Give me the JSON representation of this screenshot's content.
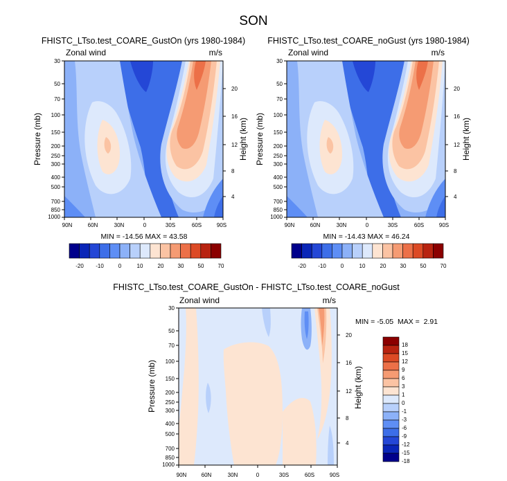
{
  "figure_title": "SON",
  "chart_data": [
    {
      "type": "heatmap",
      "title": "FHISTC_LTso.test_COARE_GustOn (yrs 1980-1984)",
      "left_label": "Zonal wind",
      "right_label": "m/s",
      "xlabel": "",
      "ylabel": "Pressure (mb)",
      "y2label": "Height (km)",
      "x_ticks": [
        "90N",
        "60N",
        "30N",
        "0",
        "30S",
        "60S",
        "90S"
      ],
      "y_ticks": [
        "30",
        "50",
        "70",
        "100",
        "150",
        "200",
        "250",
        "300",
        "400",
        "500",
        "700",
        "850",
        "1000"
      ],
      "y2_ticks": [
        "20",
        "16",
        "12",
        "8",
        "4"
      ],
      "stats": "MIN = -14.56  MAX = 43.58",
      "min": -14.56,
      "max": 43.58,
      "colorbar_labels": [
        "-20",
        "-10",
        "0",
        "10",
        "20",
        "30",
        "50",
        "70"
      ]
    },
    {
      "type": "heatmap",
      "title": "FHISTC_LTso.test_COARE_noGust (yrs 1980-1984)",
      "left_label": "Zonal wind",
      "right_label": "m/s",
      "xlabel": "",
      "ylabel": "Pressure (mb)",
      "y2label": "Height (km)",
      "x_ticks": [
        "90N",
        "60N",
        "30N",
        "0",
        "30S",
        "60S",
        "90S"
      ],
      "y_ticks": [
        "30",
        "50",
        "70",
        "100",
        "150",
        "200",
        "250",
        "300",
        "400",
        "500",
        "700",
        "850",
        "1000"
      ],
      "y2_ticks": [
        "20",
        "16",
        "12",
        "8",
        "4"
      ],
      "stats": "MIN = -14.43  MAX = 46.24",
      "min": -14.43,
      "max": 46.24,
      "colorbar_labels": [
        "-20",
        "-10",
        "0",
        "10",
        "20",
        "30",
        "50",
        "70"
      ]
    },
    {
      "type": "heatmap",
      "title": "FHISTC_LTso.test_COARE_GustOn - FHISTC_LTso.test_COARE_noGust",
      "left_label": "Zonal wind",
      "right_label": "m/s",
      "xlabel": "",
      "ylabel": "Pressure (mb)",
      "y2label": "Height (km)",
      "x_ticks": [
        "90N",
        "60N",
        "30N",
        "0",
        "30S",
        "60S",
        "90S"
      ],
      "y_ticks": [
        "30",
        "50",
        "70",
        "100",
        "150",
        "200",
        "250",
        "300",
        "400",
        "500",
        "700",
        "850",
        "1000"
      ],
      "y2_ticks": [
        "20",
        "16",
        "12",
        "8",
        "4"
      ],
      "stats": "MIN = -5.05  MAX =  2.91",
      "min": -5.05,
      "max": 2.91,
      "colorbar_labels": [
        "18",
        "15",
        "12",
        "9",
        "6",
        "3",
        "1",
        "0",
        "-1",
        "-3",
        "-6",
        "-9",
        "-12",
        "-15",
        "-18"
      ]
    }
  ],
  "colors": {
    "top_colorbar": [
      "#00008b",
      "#0a26b8",
      "#2447d6",
      "#3d6ee8",
      "#5e8ef5",
      "#8cb1f8",
      "#b8d0fb",
      "#dde9fc",
      "#fde4d2",
      "#fbc3a3",
      "#f59b73",
      "#ec7048",
      "#dc4a25",
      "#b82310",
      "#8b0000"
    ],
    "diff_colorbar": [
      "#8b0000",
      "#b82310",
      "#dc4a25",
      "#ec7048",
      "#f59b73",
      "#fbc3a3",
      "#fde4d2",
      "#dde9fc",
      "#b8d0fb",
      "#8cb1f8",
      "#5e8ef5",
      "#3d6ee8",
      "#2447d6",
      "#0a26b8",
      "#00008b"
    ]
  }
}
